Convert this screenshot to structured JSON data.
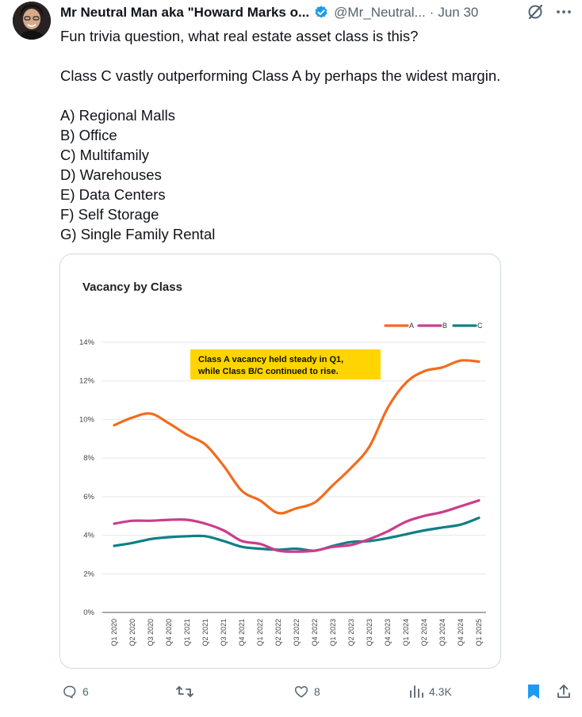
{
  "author": {
    "name": "Mr Neutral Man aka \"Howard Marks o...",
    "handle": "@Mr_Neutral...",
    "date": "Jun 30"
  },
  "tweet": {
    "line1": "Fun trivia question, what real estate asset class is this?",
    "line2": "Class C vastly outperforming Class A by perhaps the widest margin.",
    "options": [
      "A) Regional Malls",
      "B) Office",
      "C) Multifamily",
      "D) Warehouses",
      "E) Data Centers",
      "F) Self Storage",
      "G) Single Family Rental"
    ]
  },
  "chart_data": {
    "type": "line",
    "title": "Vacancy by Class",
    "annotation": [
      "Class A vacancy held steady in Q1,",
      "while Class B/C continued to rise."
    ],
    "categories": [
      "Q1 2020",
      "Q2 2020",
      "Q3 2020",
      "Q4 2020",
      "Q1 2021",
      "Q2 2021",
      "Q3 2021",
      "Q4 2021",
      "Q1 2022",
      "Q2 2022",
      "Q3 2022",
      "Q4 2022",
      "Q1 2023",
      "Q2 2023",
      "Q3 2023",
      "Q4 2023",
      "Q1 2024",
      "Q2 2024",
      "Q3 2024",
      "Q4 2024",
      "Q1 2025"
    ],
    "y_ticks": [
      "0%",
      "2%",
      "4%",
      "6%",
      "8%",
      "10%",
      "12%",
      "14%"
    ],
    "ylim": [
      0,
      14
    ],
    "legend_position": "top-right",
    "series": [
      {
        "name": "A",
        "color": "#f26b1d",
        "values": [
          9.7,
          10.1,
          10.3,
          9.8,
          9.2,
          8.7,
          7.6,
          6.3,
          5.8,
          5.15,
          5.4,
          5.7,
          6.6,
          7.5,
          8.6,
          10.6,
          11.9,
          12.5,
          12.7,
          13.05,
          13.0
        ]
      },
      {
        "name": "B",
        "color": "#cc3d8c",
        "values": [
          4.6,
          4.75,
          4.75,
          4.8,
          4.8,
          4.6,
          4.25,
          3.7,
          3.55,
          3.2,
          3.15,
          3.2,
          3.4,
          3.5,
          3.8,
          4.2,
          4.7,
          5.0,
          5.2,
          5.5,
          5.8
        ]
      },
      {
        "name": "C",
        "color": "#0e7f86",
        "values": [
          3.45,
          3.6,
          3.8,
          3.9,
          3.95,
          3.95,
          3.7,
          3.4,
          3.3,
          3.25,
          3.3,
          3.2,
          3.45,
          3.65,
          3.7,
          3.85,
          4.05,
          4.25,
          4.4,
          4.55,
          4.9
        ]
      }
    ]
  },
  "actions": {
    "replies": "6",
    "likes": "8",
    "views": "4.3K"
  }
}
